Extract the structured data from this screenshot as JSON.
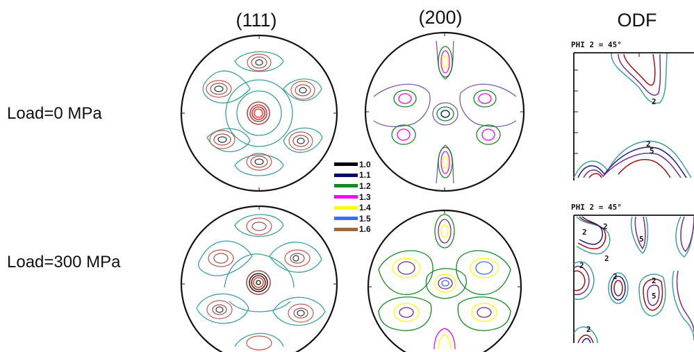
{
  "columns": [
    "(111)",
    "(200)",
    "ODF"
  ],
  "rows": [
    "Load=0 MPa",
    "Load=300 MPa"
  ],
  "legend": [
    {
      "label": "1.0",
      "color": "#000000"
    },
    {
      "label": "1.1",
      "color": "#000a6e"
    },
    {
      "label": "1.2",
      "color": "#118a1e"
    },
    {
      "label": "1.3",
      "color": "#ff00ff"
    },
    {
      "label": "1.4",
      "color": "#ffff00"
    },
    {
      "label": "1.5",
      "color": "#3a6cff"
    },
    {
      "label": "1.6",
      "color": "#9a6a3a"
    }
  ],
  "odf": {
    "section_label": "PHI 2 =  45°",
    "contour_label_a": "2",
    "contour_label_b": "5"
  },
  "colors": {
    "teal": "#3aa0a0",
    "brown": "#c05a46",
    "purple": "#7a2a8a",
    "darkred": "#a01010",
    "navy": "#1a1a8a"
  }
}
